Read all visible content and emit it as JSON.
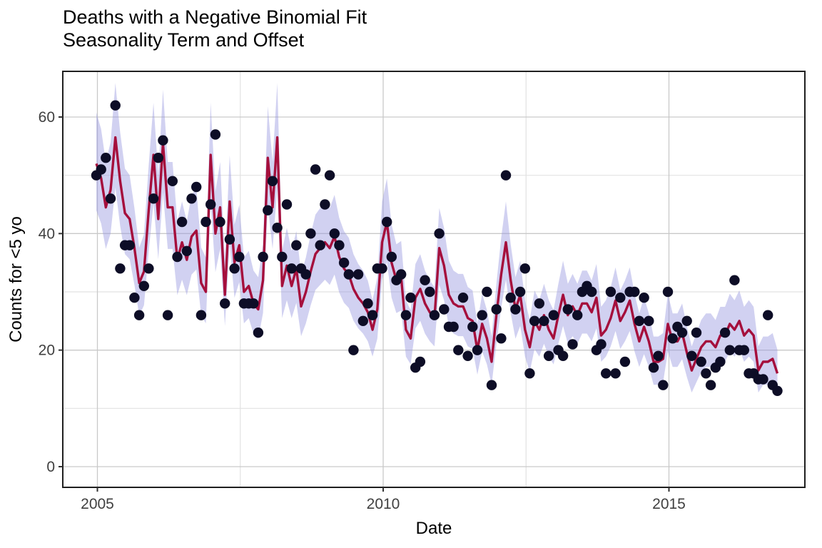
{
  "chart_data": {
    "type": "scatter+line+ribbon",
    "title_line1": "Deaths with a Negative Binomial Fit",
    "title_line2": "Seasonality Term and Offset",
    "xlabel": "Date",
    "ylabel": "Counts for <5 yo",
    "x_start": "2005-01",
    "x_end": "2016-12",
    "x_tick_labels": [
      "2005",
      "2010",
      "2015"
    ],
    "x_tick_years": [
      2005,
      2010,
      2015
    ],
    "x_minor_years": [
      2007.5,
      2012.5
    ],
    "y_tick_labels": [
      "0",
      "20",
      "40",
      "60"
    ],
    "y_ticks": [
      0,
      20,
      40,
      60
    ],
    "y_minor_ticks": [
      10,
      30,
      50
    ],
    "ylim": [
      -3.5,
      67.8
    ],
    "grid": "major+minor",
    "legend": "none",
    "observed": [
      50,
      51,
      53,
      46,
      62,
      34,
      38,
      38,
      29,
      26,
      31,
      34,
      46,
      53,
      56,
      26,
      49,
      36,
      42,
      37,
      46,
      48,
      26,
      42,
      45,
      57,
      42,
      28,
      39,
      34,
      36,
      28,
      28,
      28,
      23,
      36,
      44,
      49,
      41,
      36,
      45,
      34,
      38,
      34,
      33,
      40,
      51,
      38,
      45,
      50,
      40,
      38,
      35,
      33,
      20,
      33,
      25,
      28,
      26,
      34,
      34,
      42,
      36,
      32,
      33,
      26,
      29,
      17,
      18,
      32,
      30,
      26,
      40,
      27,
      24,
      24,
      20,
      29,
      19,
      24,
      20,
      26,
      30,
      14,
      27,
      22,
      50,
      29,
      27,
      30,
      34,
      16,
      25,
      28,
      25,
      19,
      26,
      20,
      19,
      27,
      21,
      26,
      30,
      31,
      30,
      20,
      21,
      16,
      30,
      16,
      29,
      18,
      30,
      30,
      25,
      29,
      25,
      17,
      19,
      14,
      30,
      22,
      24,
      23,
      25,
      19,
      23,
      18,
      16,
      14,
      17,
      18,
      23,
      20,
      32,
      20,
      20,
      16,
      16,
      15,
      15,
      26,
      14,
      13
    ],
    "fit": [
      52,
      49.5,
      44.5,
      47.5,
      56.5,
      49,
      43.5,
      42.5,
      37.5,
      31.5,
      33.5,
      44,
      53.5,
      42.5,
      55.5,
      44.5,
      44.5,
      35.5,
      38.5,
      35.5,
      39.5,
      40.5,
      31.5,
      30,
      53.5,
      40,
      44.5,
      29.5,
      45.5,
      35,
      38,
      30,
      31,
      28,
      27,
      32,
      53,
      44.5,
      56.5,
      31,
      34.5,
      31,
      34,
      27.5,
      30,
      33.5,
      36.5,
      37.5,
      38.5,
      37.5,
      39.5,
      36,
      34,
      33,
      30.5,
      29,
      28,
      26.5,
      23.5,
      27,
      38.5,
      42,
      35,
      32,
      32.5,
      23.5,
      22,
      29,
      30.5,
      28,
      26.5,
      25.5,
      37.5,
      34.5,
      29.5,
      28,
      27.5,
      27.5,
      25.5,
      25,
      20,
      24.5,
      22,
      18,
      26,
      33,
      38.5,
      32,
      27,
      29.5,
      23.5,
      20.5,
      25,
      23.5,
      26,
      23.5,
      22,
      26,
      29.5,
      26,
      27.5,
      26,
      28,
      28,
      26.5,
      29,
      22.5,
      23.5,
      25.5,
      28.5,
      25,
      26.5,
      28.5,
      24.5,
      21.5,
      24,
      21.5,
      18,
      18,
      18.5,
      24.5,
      21.5,
      21.5,
      23,
      19.5,
      16.5,
      18.5,
      20.5,
      21.5,
      21.5,
      20.5,
      22.5,
      22.5,
      24.5,
      23.5,
      25,
      22.5,
      23.5,
      22.5,
      16.5,
      18,
      18,
      18.5,
      16
    ],
    "ci_upper_rule": {
      "slope": 1.13,
      "offset": 2.0
    },
    "ci_lower_rule": {
      "slope": 0.88,
      "offset": -1.8
    },
    "colors": {
      "point": "#0d0d26",
      "fit_line": "#a50f3c",
      "ribbon": "#9a9ae0",
      "ribbon_opacity": 0.45,
      "grid_major": "#c9c9c9",
      "grid_minor": "#e2e2e2",
      "panel_border": "#1f1f1f",
      "tick_label": "#404040",
      "axis_title": "#000000",
      "background": "#ffffff"
    }
  }
}
